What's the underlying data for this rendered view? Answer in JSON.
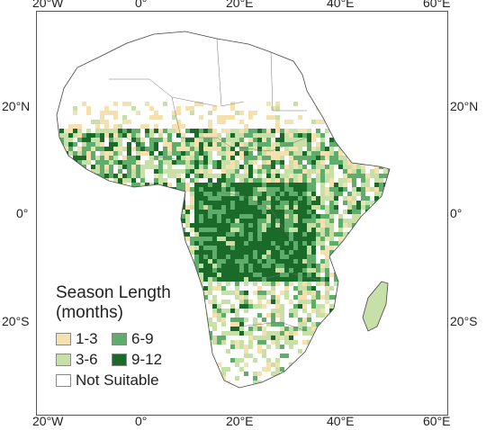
{
  "map": {
    "lon_labels": [
      "20°W",
      "0°",
      "20°E",
      "40°E",
      "60°E"
    ],
    "lat_labels": [
      "20°N",
      "0°",
      "20°S"
    ],
    "colors": {
      "outline": "#444444",
      "frame": "#555555"
    }
  },
  "legend": {
    "title_line1": "Season Length",
    "title_line2": "(months)",
    "items": [
      {
        "label": "1-3",
        "color": "#f5e0b0"
      },
      {
        "label": "3-6",
        "color": "#c6e0a8"
      },
      {
        "label": "6-9",
        "color": "#5fad6a"
      },
      {
        "label": "9-12",
        "color": "#1a6a2a"
      },
      {
        "label": "Not Suitable",
        "color": "#ffffff"
      }
    ]
  }
}
